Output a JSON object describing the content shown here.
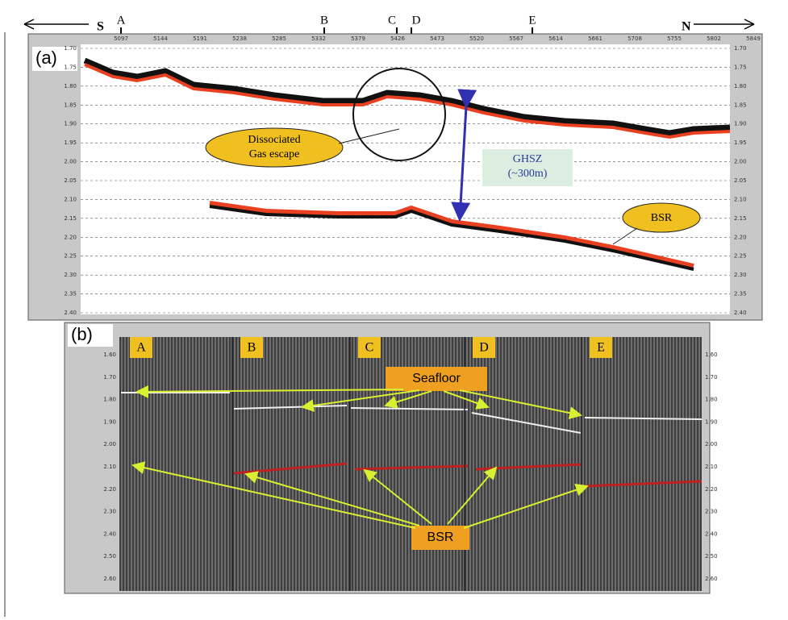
{
  "header": {
    "south": "S",
    "north": "N",
    "markers": [
      "A",
      "B",
      "C",
      "D",
      "E"
    ]
  },
  "panel_a": {
    "label": "(a)",
    "traces": [
      "5097",
      "5144",
      "5191",
      "5238",
      "5285",
      "5332",
      "5379",
      "5426",
      "5473",
      "5520",
      "5567",
      "5614",
      "5661",
      "5708",
      "5755",
      "5802",
      "5849"
    ],
    "time_ticks": [
      "1.70",
      "1.75",
      "1.80",
      "1.85",
      "1.90",
      "1.95",
      "2.00",
      "2.05",
      "2.10",
      "2.15",
      "2.20",
      "2.25",
      "2.30",
      "2.35",
      "2.40"
    ],
    "gas_label": [
      "Dissociated",
      "Gas escape"
    ],
    "ghsz_label": [
      "GHSZ",
      "(~300m)"
    ],
    "bsr_label": "BSR"
  },
  "panel_b": {
    "label": "(b)",
    "sections": [
      "A",
      "B",
      "C",
      "D",
      "E"
    ],
    "time_ticks": [
      "1.60",
      "1.70",
      "1.80",
      "1.90",
      "2.00",
      "2.10",
      "2.20",
      "2.30",
      "2.40",
      "2.50",
      "2.60"
    ],
    "seafloor_label": "Seafloor",
    "bsr_label": "BSR"
  }
}
